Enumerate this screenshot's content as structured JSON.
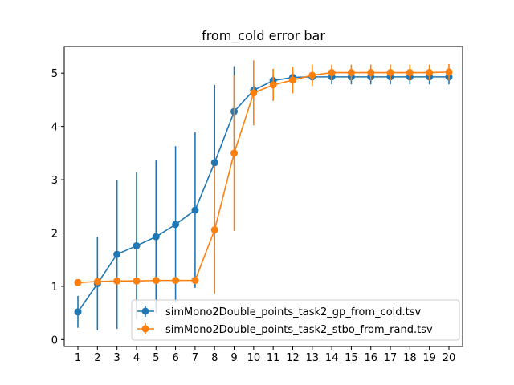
{
  "chart_data": {
    "type": "line",
    "title": "from_cold error bar",
    "xlabel": "",
    "ylabel": "",
    "x": [
      1,
      2,
      3,
      4,
      5,
      6,
      7,
      8,
      9,
      10,
      11,
      12,
      13,
      14,
      15,
      16,
      17,
      18,
      19,
      20
    ],
    "xlim": [
      0.3,
      20.7
    ],
    "ylim": [
      -0.13,
      5.5
    ],
    "yticks": [
      0,
      1,
      2,
      3,
      4,
      5
    ],
    "grid": false,
    "legend_position": "lower-right",
    "series": [
      {
        "name": "simMono2Double_points_task2_gp_from_cold.tsv",
        "color": "#1f77b4",
        "values": [
          0.52,
          1.05,
          1.6,
          1.76,
          1.93,
          2.16,
          2.43,
          3.32,
          4.28,
          4.68,
          4.86,
          4.92,
          4.93,
          4.93,
          4.93,
          4.93,
          4.93,
          4.93,
          4.93,
          4.93
        ],
        "errors": [
          0.3,
          0.88,
          1.4,
          1.38,
          1.43,
          1.47,
          1.46,
          1.46,
          0.85,
          0.1,
          0.1,
          0.1,
          0.1,
          0.14,
          0.14,
          0.14,
          0.14,
          0.14,
          0.14,
          0.14
        ]
      },
      {
        "name": "simMono2Double_points_task2_stbo_from_rand.tsv",
        "color": "#ff7f0e",
        "values": [
          1.07,
          1.09,
          1.1,
          1.1,
          1.11,
          1.11,
          1.11,
          2.06,
          3.5,
          4.63,
          4.78,
          4.87,
          4.96,
          5.01,
          5.01,
          5.01,
          5.01,
          5.01,
          5.01,
          5.02
        ],
        "errors": [
          0.03,
          0.03,
          0.03,
          0.03,
          0.03,
          0.03,
          0.03,
          1.2,
          1.46,
          0.61,
          0.3,
          0.25,
          0.2,
          0.15,
          0.15,
          0.15,
          0.15,
          0.15,
          0.15,
          0.15
        ]
      }
    ]
  }
}
